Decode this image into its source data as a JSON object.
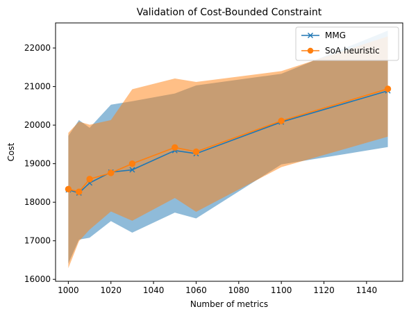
{
  "chart_data": {
    "type": "line",
    "title": "Validation of Cost-Bounded Constraint",
    "xlabel": "Number of metrics",
    "ylabel": "Cost",
    "xlim": [
      994,
      1157
    ],
    "ylim": [
      15950,
      22650
    ],
    "xticks": [
      1000,
      1020,
      1040,
      1060,
      1080,
      1100,
      1120,
      1140
    ],
    "yticks": [
      16000,
      17000,
      18000,
      19000,
      20000,
      21000,
      22000
    ],
    "x": [
      1000,
      1005,
      1010,
      1020,
      1030,
      1050,
      1060,
      1100,
      1150
    ],
    "legend_position": "top-right",
    "grid": false,
    "series": [
      {
        "name": "MMG",
        "color": "#1f77b4",
        "marker": "x",
        "values": [
          18320,
          18240,
          18500,
          18780,
          18840,
          19340,
          19260,
          20080,
          20890
        ],
        "band_upper": [
          19720,
          20130,
          19930,
          20530,
          20620,
          20820,
          21030,
          21330,
          22450
        ],
        "band_lower": [
          16410,
          17030,
          17080,
          17510,
          17210,
          17730,
          17580,
          18980,
          19430
        ]
      },
      {
        "name": "SoA heuristic",
        "color": "#ff7f0e",
        "marker": "o",
        "values": [
          18340,
          18270,
          18600,
          18760,
          19000,
          19420,
          19310,
          20110,
          20940
        ],
        "band_upper": [
          19800,
          20090,
          20010,
          20130,
          20930,
          21210,
          21120,
          21400,
          22300
        ],
        "band_lower": [
          16290,
          16990,
          17290,
          17760,
          17520,
          18110,
          17750,
          18910,
          19700
        ]
      }
    ]
  }
}
